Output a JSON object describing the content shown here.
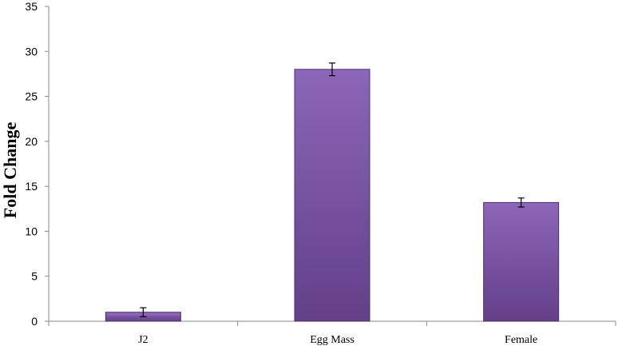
{
  "chart_data": {
    "type": "bar",
    "categories": [
      "J2",
      "Egg Mass",
      "Female"
    ],
    "values": [
      1.0,
      28.0,
      13.2
    ],
    "error": [
      0.5,
      0.7,
      0.5
    ],
    "ylabel": "Fold Change",
    "xlabel": "",
    "ylim": [
      0,
      35
    ],
    "yticks": [
      0,
      5,
      10,
      15,
      20,
      25,
      30,
      35
    ],
    "grid": false,
    "legend": "none",
    "bar_color": "#7b56a6",
    "bar_color_light": "#8c66b8",
    "bar_color_dark": "#634088",
    "bar_outline": "#4a2f6e"
  }
}
